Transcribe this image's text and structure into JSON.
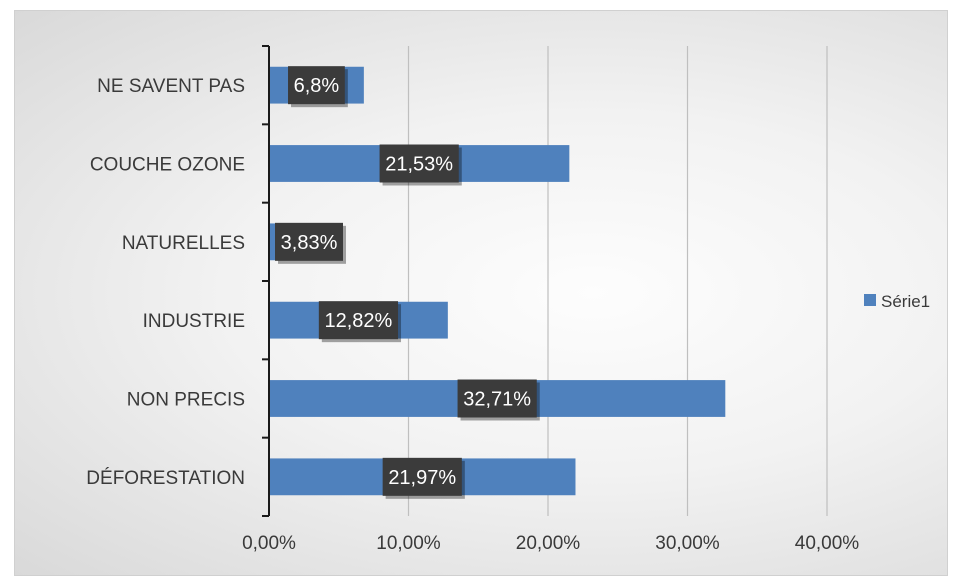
{
  "chart_data": {
    "type": "bar",
    "orientation": "horizontal",
    "categories": [
      "DÉFORESTATION",
      "NON PRECIS",
      "INDUSTRIE",
      "NATURELLES",
      "COUCHE OZONE",
      "NE SAVENT PAS"
    ],
    "series": [
      {
        "name": "Série1",
        "values": [
          21.97,
          32.71,
          12.82,
          3.83,
          21.53,
          6.8
        ],
        "data_labels": [
          "21,97%",
          "32,71%",
          "12,82%",
          "3,83%",
          "21,53%",
          "6,8%"
        ]
      }
    ],
    "xticks": [
      0,
      10,
      20,
      30,
      40
    ],
    "xtick_labels": [
      "0,00%",
      "10,00%",
      "20,00%",
      "30,00%",
      "40,00%"
    ],
    "xlim": [
      0,
      40
    ],
    "grid": true,
    "legend_position": "right",
    "colors": {
      "bar": "#4f81bd",
      "label_box": "#3b3b3b",
      "grid": "#bfbfbf",
      "axis": "#1a1a1a"
    }
  }
}
